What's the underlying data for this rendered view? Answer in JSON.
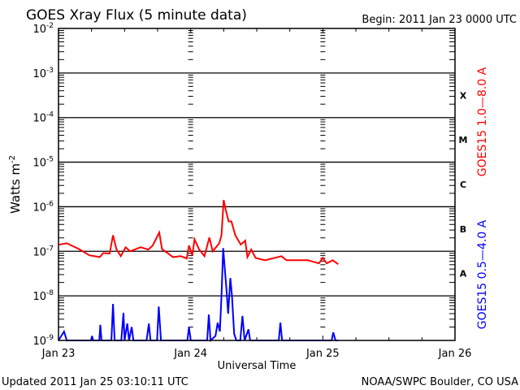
{
  "chart_data": {
    "type": "line",
    "title": "GOES Xray Flux (5 minute data)",
    "begin_label": "Begin:  2011 Jan 23 0000 UTC",
    "xlabel": "Universal Time",
    "ylabel": "Watts m",
    "ylabel_exp": "-2",
    "x_units": "hours since 2011 Jan 23 0000 UTC",
    "xlim": [
      0,
      72
    ],
    "x_ticks": [
      {
        "value": 0,
        "label": "Jan 23"
      },
      {
        "value": 24,
        "label": "Jan 24"
      },
      {
        "value": 48,
        "label": "Jan 25"
      },
      {
        "value": 72,
        "label": "Jan 26"
      }
    ],
    "y_scale": "log",
    "y_units": "log10 W m^-2",
    "ylim": [
      -9,
      -2
    ],
    "y_ticks": [
      {
        "value": -2,
        "base": "10",
        "exp": "-2"
      },
      {
        "value": -3,
        "base": "10",
        "exp": "-3"
      },
      {
        "value": -4,
        "base": "10",
        "exp": "-4"
      },
      {
        "value": -5,
        "base": "10",
        "exp": "-5"
      },
      {
        "value": -6,
        "base": "10",
        "exp": "-6"
      },
      {
        "value": -7,
        "base": "10",
        "exp": "-7"
      },
      {
        "value": -8,
        "base": "10",
        "exp": "-8"
      },
      {
        "value": -9,
        "base": "10",
        "exp": "-9"
      }
    ],
    "flare_classes": [
      {
        "label": "X",
        "y": -3.5
      },
      {
        "label": "M",
        "y": -4.5
      },
      {
        "label": "C",
        "y": -5.5
      },
      {
        "label": "B",
        "y": -6.5
      },
      {
        "label": "A",
        "y": -7.5
      }
    ],
    "grid": true,
    "legend_placement": "right, vertical",
    "series": [
      {
        "name": "GOES15 1.0—8.0 A",
        "color": "#ff0000",
        "points": [
          [
            0.1,
            -6.85
          ],
          [
            1.5,
            -6.82
          ],
          [
            3.7,
            -6.95
          ],
          [
            5.6,
            -7.09
          ],
          [
            7.5,
            -7.13
          ],
          [
            8.1,
            -7.04
          ],
          [
            9.3,
            -7.05
          ],
          [
            9.9,
            -6.64
          ],
          [
            10.5,
            -6.95
          ],
          [
            11.3,
            -7.11
          ],
          [
            12.2,
            -6.91
          ],
          [
            13.0,
            -7.0
          ],
          [
            14.9,
            -6.91
          ],
          [
            16.3,
            -6.96
          ],
          [
            17.1,
            -6.87
          ],
          [
            18.3,
            -6.58
          ],
          [
            18.8,
            -6.95
          ],
          [
            20.8,
            -7.13
          ],
          [
            22.2,
            -7.11
          ],
          [
            23.3,
            -7.16
          ],
          [
            23.7,
            -6.87
          ],
          [
            24.3,
            -7.09
          ],
          [
            24.7,
            -6.73
          ],
          [
            25.5,
            -6.95
          ],
          [
            26.5,
            -7.11
          ],
          [
            27.4,
            -6.69
          ],
          [
            28.0,
            -7.0
          ],
          [
            29.2,
            -6.82
          ],
          [
            29.6,
            -6.64
          ],
          [
            30.0,
            -5.85
          ],
          [
            30.3,
            -6.04
          ],
          [
            30.9,
            -6.33
          ],
          [
            31.4,
            -6.33
          ],
          [
            32.1,
            -6.64
          ],
          [
            33.1,
            -6.85
          ],
          [
            33.9,
            -6.76
          ],
          [
            34.3,
            -7.13
          ],
          [
            35.0,
            -6.96
          ],
          [
            35.8,
            -7.15
          ],
          [
            37.5,
            -7.2
          ],
          [
            40.5,
            -7.11
          ],
          [
            41.4,
            -7.2
          ],
          [
            45.3,
            -7.2
          ],
          [
            47.3,
            -7.27
          ],
          [
            48.0,
            -7.15
          ],
          [
            48.7,
            -7.27
          ],
          [
            49.8,
            -7.2
          ],
          [
            50.8,
            -7.29
          ]
        ]
      },
      {
        "name": "GOES15 0.5—4.0 A",
        "color": "#0000ff",
        "points": [
          [
            0,
            -9
          ],
          [
            1,
            -8.8
          ],
          [
            1.5,
            -9
          ],
          [
            5.9,
            -9
          ],
          [
            6.1,
            -8.9
          ],
          [
            6.3,
            -9
          ],
          [
            7.4,
            -9
          ],
          [
            7.6,
            -8.65
          ],
          [
            7.8,
            -9
          ],
          [
            9.6,
            -9
          ],
          [
            9.9,
            -8.18
          ],
          [
            10.2,
            -9
          ],
          [
            11.4,
            -9
          ],
          [
            11.8,
            -8.38
          ],
          [
            12.0,
            -9
          ],
          [
            12.5,
            -8.62
          ],
          [
            12.8,
            -9
          ],
          [
            13.3,
            -8.7
          ],
          [
            13.6,
            -9
          ],
          [
            16.0,
            -9
          ],
          [
            16.4,
            -8.62
          ],
          [
            16.7,
            -9
          ],
          [
            17.9,
            -9
          ],
          [
            18.2,
            -8.24
          ],
          [
            18.6,
            -9
          ],
          [
            23.4,
            -9
          ],
          [
            23.7,
            -8.7
          ],
          [
            24.0,
            -9
          ],
          [
            27.0,
            -9
          ],
          [
            27.3,
            -8.42
          ],
          [
            27.6,
            -9
          ],
          [
            28.5,
            -8.9
          ],
          [
            28.9,
            -8.6
          ],
          [
            29.3,
            -8.8
          ],
          [
            29.6,
            -8.0
          ],
          [
            29.9,
            -6.93
          ],
          [
            30.2,
            -7.4
          ],
          [
            30.5,
            -7.85
          ],
          [
            30.8,
            -8.4
          ],
          [
            31.2,
            -7.6
          ],
          [
            31.5,
            -8.0
          ],
          [
            31.9,
            -8.85
          ],
          [
            32.3,
            -9
          ],
          [
            33.0,
            -9
          ],
          [
            33.4,
            -8.45
          ],
          [
            33.8,
            -9
          ],
          [
            34.5,
            -8.75
          ],
          [
            34.8,
            -9
          ],
          [
            40.0,
            -9
          ],
          [
            40.3,
            -8.6
          ],
          [
            40.6,
            -9
          ],
          [
            49.6,
            -9
          ],
          [
            49.9,
            -8.82
          ],
          [
            50.3,
            -9
          ],
          [
            50.8,
            -9
          ]
        ]
      }
    ]
  },
  "footer": {
    "updated": "Updated 2011 Jan 25 03:10:11 UTC",
    "credit": "NOAA/SWPC Boulder, CO USA"
  }
}
